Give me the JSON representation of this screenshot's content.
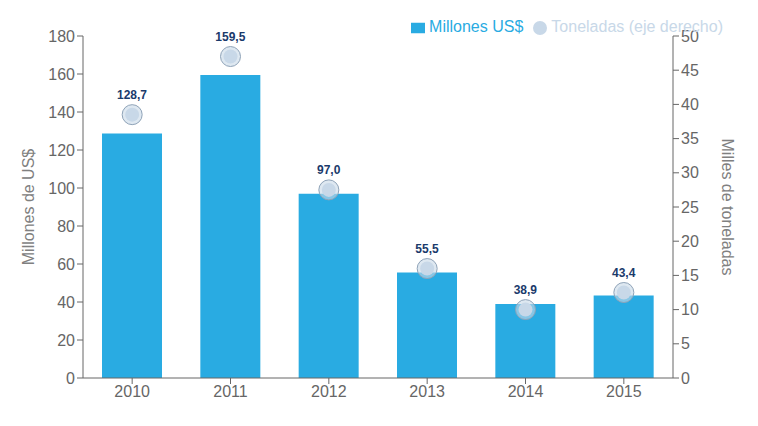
{
  "chart_data": {
    "type": "bar",
    "categories": [
      "2010",
      "2011",
      "2012",
      "2013",
      "2014",
      "2015"
    ],
    "series": [
      {
        "name": "Millones US$",
        "type": "bar",
        "color": "#29ABE2",
        "values": [
          128.7,
          159.5,
          97.0,
          55.5,
          38.9,
          43.4
        ],
        "data_labels": true,
        "value_labels": [
          "128,7",
          "159,5",
          "97,0",
          "55,5",
          "38,9",
          "43,4"
        ]
      },
      {
        "name": "Toneladas (eje derecho)",
        "type": "scatter",
        "marker": "circle",
        "color": "#C8D8E8",
        "axis": "y2",
        "values": [
          38.5,
          47.0,
          27.5,
          16.0,
          10.0,
          12.5
        ]
      }
    ],
    "ylabel": "Millones de US$",
    "y2label": "Milles de toneladas",
    "ylim": [
      0,
      180
    ],
    "yticks": [
      0,
      20,
      40,
      60,
      80,
      100,
      120,
      140,
      160,
      180
    ],
    "y2lim": [
      0,
      50
    ],
    "y2ticks": [
      0,
      5,
      10,
      15,
      20,
      25,
      30,
      35,
      40,
      45,
      50
    ],
    "grid": false,
    "legend": "upper right"
  }
}
